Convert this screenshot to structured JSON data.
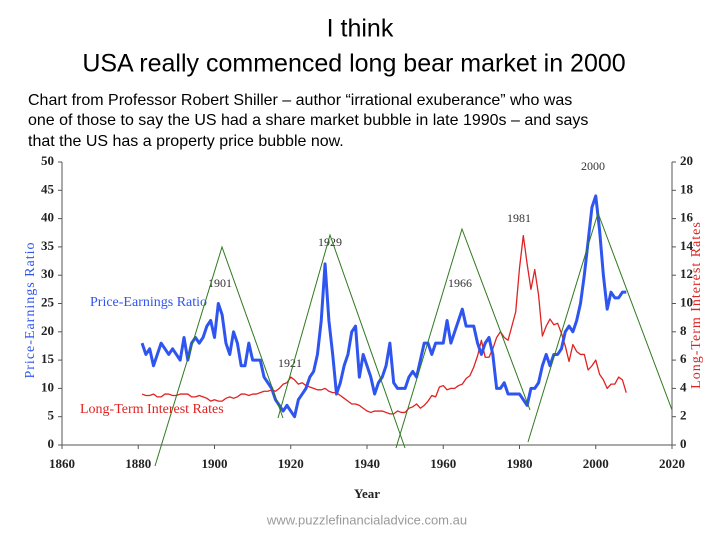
{
  "slide": {
    "title_lines": [
      "I think",
      "USA really commenced long bear market in 2000"
    ],
    "body_lines": [
      "Chart from Professor Robert Shiller – author “irrational exuberance” who was",
      "one of those to say the US had a share market bubble in late 1990s – and says",
      "that the US has a property price bubble now."
    ],
    "footer": "www.puzzlefinancialadvice.com.au"
  },
  "chart_data": {
    "type": "line",
    "x_label": "Year",
    "y_label": "Price-Earnings Ratio",
    "y2_label": "Long-Term Interest Rates",
    "xlim": [
      1860,
      2020
    ],
    "xticks": [
      1860,
      1880,
      1900,
      1920,
      1940,
      1960,
      1980,
      2000,
      2020
    ],
    "ylim": [
      0,
      50
    ],
    "yticks": [
      0,
      5,
      10,
      15,
      20,
      25,
      30,
      35,
      40,
      45,
      50
    ],
    "y2lim": [
      0,
      20
    ],
    "y2ticks": [
      0,
      2,
      4,
      6,
      8,
      10,
      12,
      14,
      16,
      18,
      20
    ],
    "annotations": [
      "1901",
      "1921",
      "1929",
      "1966",
      "1981",
      "2000"
    ],
    "x": [
      1881,
      1882,
      1883,
      1884,
      1885,
      1886,
      1887,
      1888,
      1889,
      1890,
      1891,
      1892,
      1893,
      1894,
      1895,
      1896,
      1897,
      1898,
      1899,
      1900,
      1901,
      1902,
      1903,
      1904,
      1905,
      1906,
      1907,
      1908,
      1909,
      1910,
      1911,
      1912,
      1913,
      1914,
      1915,
      1916,
      1917,
      1918,
      1919,
      1920,
      1921,
      1922,
      1923,
      1924,
      1925,
      1926,
      1927,
      1928,
      1929,
      1930,
      1931,
      1932,
      1933,
      1934,
      1935,
      1936,
      1937,
      1938,
      1939,
      1940,
      1941,
      1942,
      1943,
      1944,
      1945,
      1946,
      1947,
      1948,
      1949,
      1950,
      1951,
      1952,
      1953,
      1954,
      1955,
      1956,
      1957,
      1958,
      1959,
      1960,
      1961,
      1962,
      1963,
      1964,
      1965,
      1966,
      1967,
      1968,
      1969,
      1970,
      1971,
      1972,
      1973,
      1974,
      1975,
      1976,
      1977,
      1978,
      1979,
      1980,
      1981,
      1982,
      1983,
      1984,
      1985,
      1986,
      1987,
      1988,
      1989,
      1990,
      1991,
      1992,
      1993,
      1994,
      1995,
      1996,
      1997,
      1998,
      1999,
      2000,
      2001,
      2002,
      2003,
      2004,
      2005,
      2006,
      2007,
      2008
    ],
    "series": [
      {
        "name": "Price-Earnings Ratio",
        "color": "#2f55f0",
        "axis": "y",
        "values": [
          18,
          16,
          17,
          14,
          16,
          18,
          17,
          16,
          17,
          16,
          15,
          19,
          15,
          18,
          19,
          18,
          19,
          21,
          22,
          19,
          25,
          23,
          18,
          16,
          20,
          18,
          14,
          14,
          18,
          15,
          15,
          15,
          12,
          11,
          10,
          8,
          7,
          6,
          7,
          6,
          5,
          8,
          9,
          10,
          12,
          13,
          16,
          22,
          32,
          22,
          16,
          9,
          11,
          14,
          16,
          20,
          21,
          12,
          16,
          14,
          12,
          9,
          11,
          12,
          14,
          18,
          11,
          10,
          10,
          10,
          12,
          13,
          12,
          15,
          18,
          18,
          16,
          18,
          18,
          18,
          22,
          18,
          20,
          22,
          24,
          21,
          21,
          21,
          18,
          16,
          18,
          19,
          16,
          10,
          10,
          11,
          9,
          9,
          9,
          9,
          8,
          7,
          10,
          10,
          11,
          14,
          16,
          14,
          16,
          16,
          17,
          20,
          21,
          20,
          22,
          25,
          30,
          36,
          42,
          44,
          38,
          30,
          24,
          27,
          26,
          26,
          27,
          27
        ]
      },
      {
        "name": "Long-Term Interest Rates",
        "color": "#e02222",
        "axis": "y2",
        "values": [
          3.6,
          3.5,
          3.5,
          3.6,
          3.4,
          3.4,
          3.6,
          3.6,
          3.5,
          3.5,
          3.6,
          3.6,
          3.6,
          3.4,
          3.4,
          3.5,
          3.4,
          3.3,
          3.1,
          3.2,
          3.1,
          3.1,
          3.3,
          3.4,
          3.3,
          3.4,
          3.6,
          3.6,
          3.5,
          3.6,
          3.6,
          3.7,
          3.8,
          3.8,
          3.9,
          3.8,
          4.0,
          4.3,
          4.4,
          4.8,
          4.6,
          4.3,
          4.4,
          4.2,
          4.1,
          4.0,
          3.9,
          3.9,
          4.0,
          3.8,
          3.7,
          3.7,
          3.5,
          3.3,
          3.1,
          2.9,
          2.9,
          2.8,
          2.6,
          2.4,
          2.3,
          2.4,
          2.4,
          2.4,
          2.3,
          2.2,
          2.2,
          2.4,
          2.3,
          2.3,
          2.6,
          2.7,
          2.9,
          2.6,
          2.8,
          3.1,
          3.5,
          3.4,
          4.1,
          4.2,
          3.9,
          4.0,
          4.0,
          4.2,
          4.3,
          4.7,
          4.9,
          5.5,
          6.3,
          7.4,
          6.2,
          6.2,
          6.8,
          7.6,
          8.0,
          7.6,
          7.4,
          8.4,
          9.4,
          12.5,
          14.8,
          12.8,
          11.0,
          12.4,
          10.6,
          7.7,
          8.4,
          8.9,
          8.5,
          8.6,
          7.9,
          7.0,
          5.9,
          7.1,
          6.6,
          6.4,
          6.4,
          5.3,
          5.6,
          6.0,
          5.0,
          4.6,
          4.0,
          4.3,
          4.3,
          4.8,
          4.6,
          3.7
        ]
      }
    ]
  }
}
